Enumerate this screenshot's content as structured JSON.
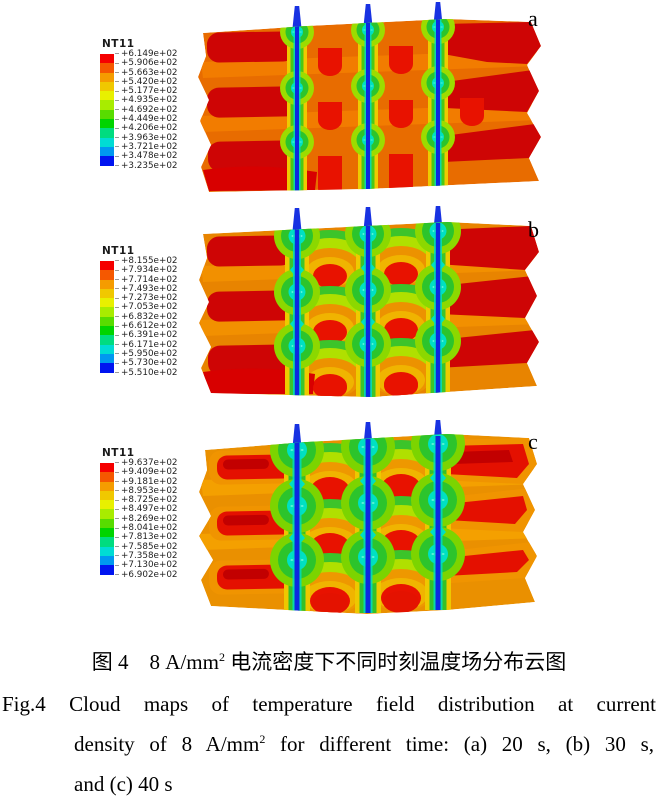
{
  "figure": {
    "legend_colors": [
      "#f50000",
      "#f55800",
      "#f59c00",
      "#f0c800",
      "#e8f000",
      "#a8ec00",
      "#58dc00",
      "#00d400",
      "#00dc80",
      "#00dcd4",
      "#0098f0",
      "#0014f0"
    ],
    "panels": [
      {
        "label": "a",
        "legend_title": "NT11",
        "legend_values": [
          "+6.149e+02",
          "+5.906e+02",
          "+5.663e+02",
          "+5.420e+02",
          "+5.177e+02",
          "+4.935e+02",
          "+4.692e+02",
          "+4.449e+02",
          "+4.206e+02",
          "+3.963e+02",
          "+3.721e+02",
          "+3.478e+02",
          "+3.235e+02"
        ]
      },
      {
        "label": "b",
        "legend_title": "NT11",
        "legend_values": [
          "+8.155e+02",
          "+7.934e+02",
          "+7.714e+02",
          "+7.493e+02",
          "+7.273e+02",
          "+7.053e+02",
          "+6.832e+02",
          "+6.612e+02",
          "+6.391e+02",
          "+6.171e+02",
          "+5.950e+02",
          "+5.730e+02",
          "+5.510e+02"
        ]
      },
      {
        "label": "c",
        "legend_title": "NT11",
        "legend_values": [
          "+9.637e+02",
          "+9.409e+02",
          "+9.181e+02",
          "+8.953e+02",
          "+8.725e+02",
          "+8.497e+02",
          "+8.269e+02",
          "+8.041e+02",
          "+7.813e+02",
          "+7.585e+02",
          "+7.358e+02",
          "+7.130e+02",
          "+6.902e+02"
        ]
      }
    ],
    "caption": {
      "zh_prefix": "图 4　8 A/mm",
      "zh_sup": "2",
      "zh_suffix": " 电流密度下不同时刻温度场分布云图",
      "en_line1": "Fig.4 Cloud maps of temperature field distribution at current",
      "en_line2_prefix": "density of 8 A/mm",
      "en_line2_sup": "2",
      "en_line2_suffix": " for different time: (a) 20 s, (b) 30 s,",
      "en_line3": "and (c) 40 s"
    }
  }
}
